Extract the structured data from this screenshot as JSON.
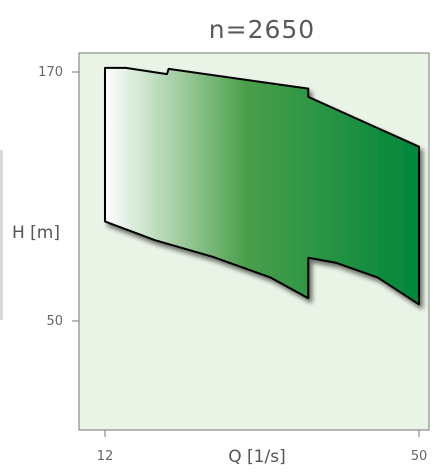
{
  "chart_data": {
    "type": "area",
    "title": "n=2650",
    "xlabel": "Q [1/s]",
    "ylabel": "H [m]",
    "x_ticks": [
      "12",
      "50"
    ],
    "y_ticks": [
      "170",
      "50"
    ],
    "xlim": [
      12,
      50
    ],
    "ylim": [
      50,
      170
    ],
    "grid": false,
    "legend": "none",
    "colors": {
      "plot_background": "#eaf4e6",
      "fill_start": "#ffffff",
      "fill_mid": "#4a9f4a",
      "fill_end": "#00873b",
      "outline": "#000000"
    },
    "region": {
      "top_edge": [
        [
          12,
          172
        ],
        [
          14.5,
          172
        ],
        [
          19.5,
          169
        ],
        [
          19.7,
          171.5
        ],
        [
          36.6,
          162
        ],
        [
          36.6,
          158
        ],
        [
          50,
          134
        ]
      ],
      "right_edge": [
        [
          50,
          134
        ],
        [
          50,
          58
        ]
      ],
      "bottom_edge": [
        [
          50,
          58
        ],
        [
          45,
          71
        ],
        [
          40,
          78
        ],
        [
          36.6,
          80.5
        ],
        [
          36.6,
          61
        ],
        [
          32,
          71
        ],
        [
          25,
          81
        ],
        [
          18,
          89
        ],
        [
          12,
          98
        ]
      ],
      "left_edge": [
        [
          12,
          98
        ],
        [
          12,
          172
        ]
      ]
    }
  }
}
